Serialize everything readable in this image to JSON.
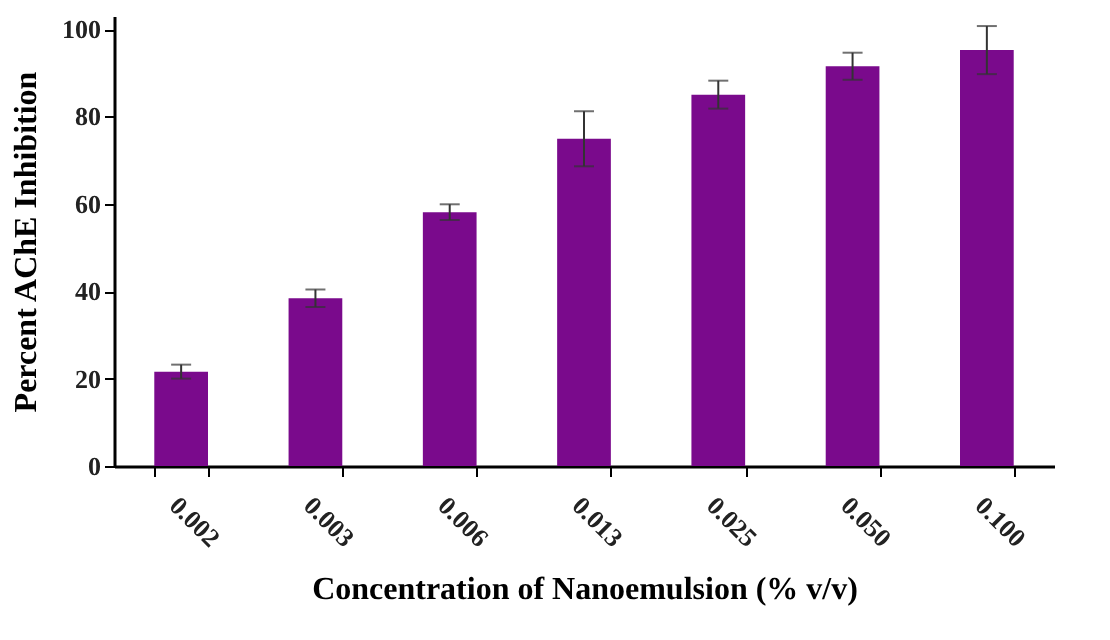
{
  "chart_data": {
    "type": "bar",
    "xlabel": "Concentration of Nanoemulsion (% v/v)",
    "ylabel": "Percent AChE Inhibition",
    "categories": [
      "0.002",
      "0.003",
      "0.006",
      "0.013",
      "0.025",
      "0.050",
      "0.100"
    ],
    "values": [
      21.6,
      38.4,
      58.1,
      74.9,
      85,
      91.5,
      95.2
    ],
    "errors": [
      1.6,
      2,
      1.8,
      6.3,
      3.2,
      3.1,
      5.5
    ],
    "color": "#7a0a8c",
    "ylim": [
      0,
      103
    ],
    "yticks": [
      0,
      20,
      40,
      60,
      80,
      100
    ],
    "grid": false
  }
}
